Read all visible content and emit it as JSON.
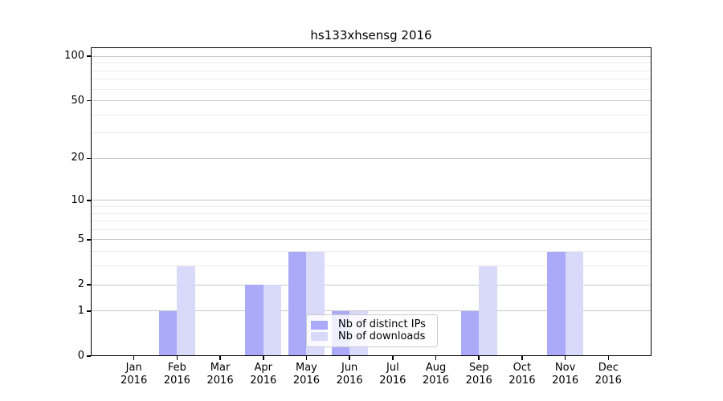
{
  "chart_data": {
    "type": "bar",
    "title": "hs133xhsensg 2016",
    "x_year": "2016",
    "categories": [
      "Jan",
      "Feb",
      "Mar",
      "Apr",
      "May",
      "Jun",
      "Jul",
      "Aug",
      "Sep",
      "Oct",
      "Nov",
      "Dec"
    ],
    "series": [
      {
        "key": "distinct-ips",
        "name": "Nb of distinct IPs",
        "color": "#aaaaf9",
        "values": [
          0,
          1,
          0,
          2,
          4,
          1,
          0,
          0,
          1,
          0,
          4,
          0
        ]
      },
      {
        "key": "downloads",
        "name": "Nb of downloads",
        "color": "#d9d9fa",
        "values": [
          0,
          3,
          0,
          2,
          4,
          1,
          0,
          0,
          3,
          0,
          4,
          0
        ]
      }
    ],
    "y_axis": {
      "scale": "log1p",
      "ticks": [
        0,
        1,
        2,
        5,
        10,
        20,
        50,
        100
      ],
      "minor_ticks": [
        3,
        4,
        6,
        7,
        8,
        9,
        30,
        40,
        60,
        70,
        80,
        90
      ],
      "ylim": [
        0,
        115
      ]
    },
    "grid": true,
    "legend_position": "lower center",
    "colors": {
      "axis": "#000000",
      "grid_major": "#c6c6c6",
      "grid_minor": "#ececec",
      "background": "#ffffff"
    }
  }
}
